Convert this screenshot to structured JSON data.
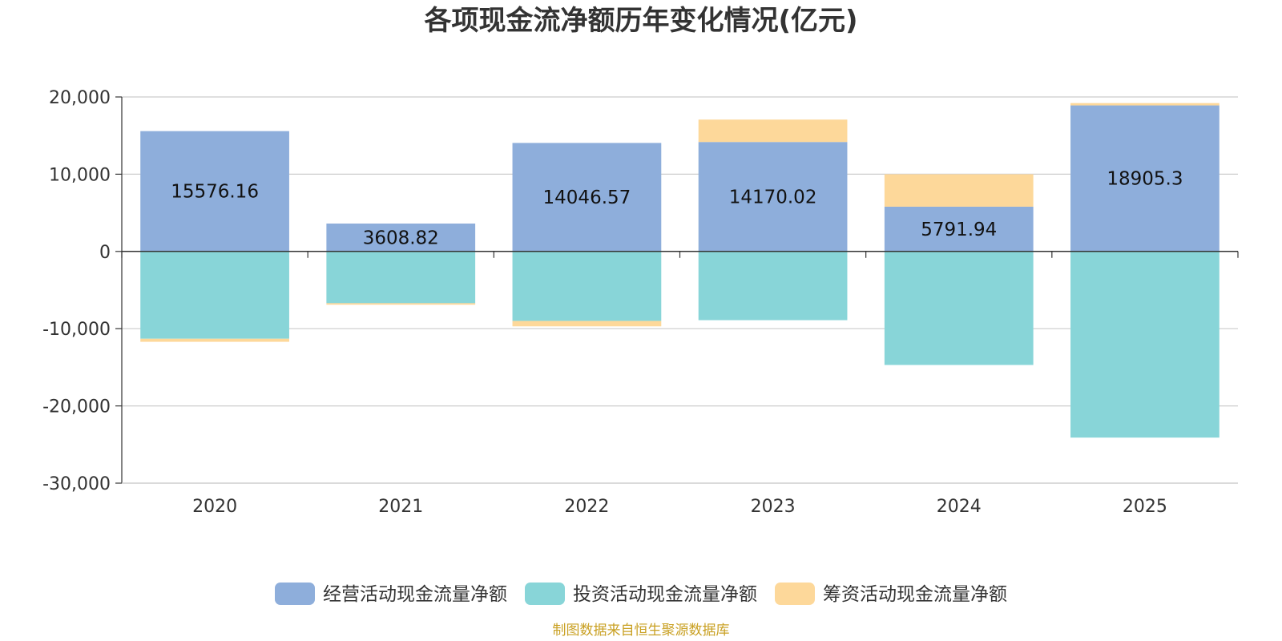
{
  "chart_data": {
    "type": "bar",
    "stacked": true,
    "title": "各项现金流净额历年变化情况(亿元)",
    "categories": [
      "2020",
      "2021",
      "2022",
      "2023",
      "2024",
      "2025"
    ],
    "series": [
      {
        "name": "经营活动现金流量净额",
        "color": "#8eaedb",
        "values": [
          15576.16,
          3608.82,
          14046.57,
          14170.02,
          5791.94,
          18905.3
        ],
        "labels": [
          "15576.16",
          "3608.82",
          "14046.57",
          "14170.02",
          "5791.94",
          "18905.3"
        ]
      },
      {
        "name": "投资活动现金流量净额",
        "color": "#88d5d8",
        "values": [
          -11300,
          -6700,
          -9000,
          -8900,
          -14700,
          -24100
        ]
      },
      {
        "name": "筹资活动现金流量净额",
        "color": "#fdd89a",
        "values": [
          -400,
          -200,
          -700,
          2900,
          4200,
          300
        ]
      }
    ],
    "ylim": [
      -30000,
      20000
    ],
    "yticks": [
      20000,
      10000,
      0,
      -10000,
      -20000,
      -30000
    ],
    "ytick_labels": [
      "20,000",
      "10,000",
      "0",
      "-10,000",
      "-20,000",
      "-30,000"
    ],
    "xlabel": "",
    "ylabel": "",
    "grid": true,
    "legend_position": "bottom-center"
  },
  "source_note": "制图数据来自恒生聚源数据库"
}
